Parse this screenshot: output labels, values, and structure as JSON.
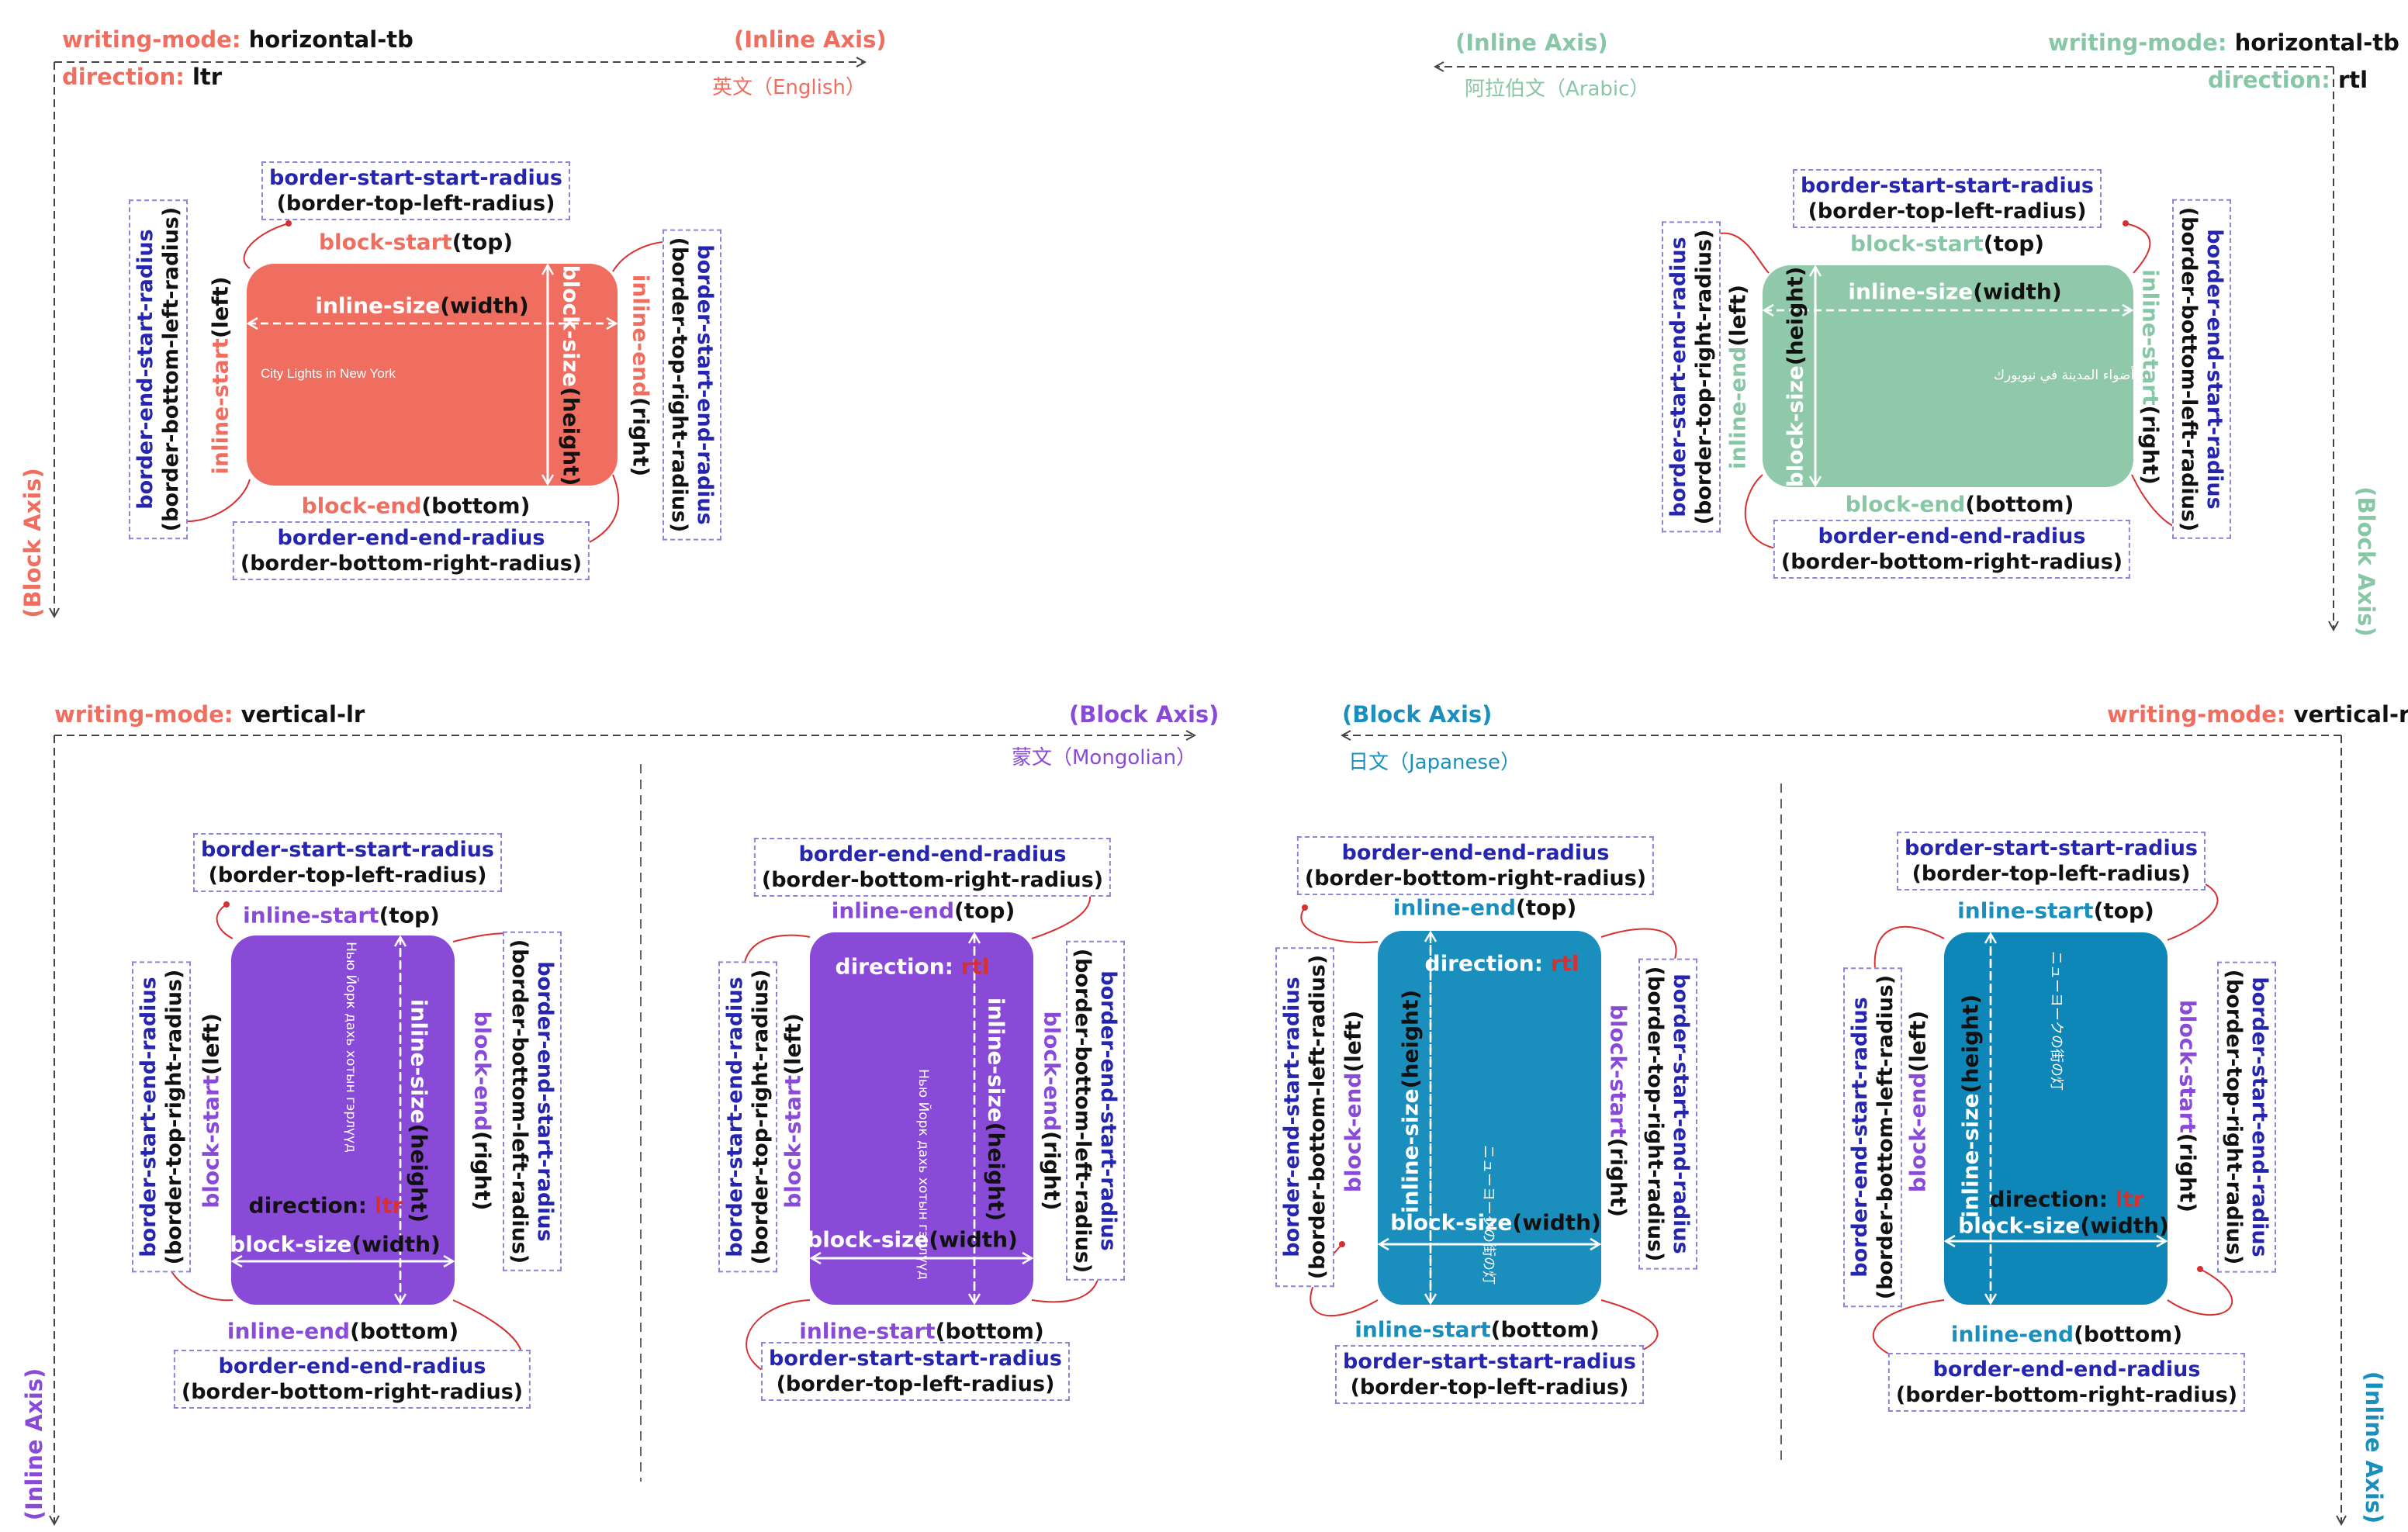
{
  "colors": {
    "red": "#f06e60",
    "green": "#88c7a6",
    "purple": "#8a4ad8",
    "blue": "#1a8fbd",
    "dark_blue": "#2525b0",
    "connector": "#d63030"
  },
  "q1": {
    "wm_key": "writing-mode:",
    "wm_val": "horizontal-tb",
    "dir_key": "direction:",
    "dir_val": "ltr",
    "inline_axis": "(Inline Axis)",
    "lang": "英文（English）",
    "block_axis": "(Block Axis)",
    "sample": "City Lights in New York",
    "inline_size": "inline-size",
    "inline_size_p": "(width)",
    "block_size": "block-size",
    "block_size_p": "(height)",
    "block_start": "block-start",
    "block_start_p": "(top)",
    "block_end": "block-end",
    "block_end_p": "(bottom)",
    "inline_start": "inline-start",
    "inline_start_p": "(left)",
    "inline_end": "inline-end",
    "inline_end_p": "(right)",
    "c_top_a": "border-start-start-radius",
    "c_top_b": "(border-top-left-radius)",
    "c_right_a": "border-start-end-radius",
    "c_right_b": "(border-top-right-radius)",
    "c_left_a": "border-end-start-radius",
    "c_left_b": "(border-bottom-left-radius)",
    "c_bottom_a": "border-end-end-radius",
    "c_bottom_b": "(border-bottom-right-radius)"
  },
  "q2": {
    "wm_key": "writing-mode:",
    "wm_val": "horizontal-tb",
    "dir_key": "direction:",
    "dir_val": "rtl",
    "inline_axis": "(Inline Axis)",
    "lang": "阿拉伯文（Arabic）",
    "block_axis": "(Block Axis)",
    "sample": "أضواء المدينة في نيويورك",
    "inline_size": "inline-size",
    "inline_size_p": "(width)",
    "block_size": "block-size",
    "block_size_p": "(height)",
    "block_start": "block-start",
    "block_start_p": "(top)",
    "block_end": "block-end",
    "block_end_p": "(bottom)",
    "inline_start": "inline-start",
    "inline_start_p": "(right)",
    "inline_end": "inline-end",
    "inline_end_p": "(left)",
    "c_top_a": "border-start-start-radius",
    "c_top_b": "(border-top-left-radius)",
    "c_right_a": "border-end-start-radius",
    "c_right_b": "(border-bottom-left-radius)",
    "c_left_a": "border-start-end-radius",
    "c_left_b": "(border-top-right-radius)",
    "c_bottom_a": "border-end-end-radius",
    "c_bottom_b": "(border-bottom-right-radius)"
  },
  "q3": {
    "wm_key": "writing-mode:",
    "wm_val": "vertical-lr",
    "block_axis": "(Block Axis)",
    "lang": "蒙文（Mongolian）",
    "inline_axis": "(Inline Axis)",
    "left": {
      "sample": "Нью Йорк дахь хотын гэрлүүд",
      "dir_key": "direction:",
      "dir_val": "ltr",
      "inline_size": "inline-size",
      "inline_size_p": "(height)",
      "block_size": "block-size",
      "block_size_p": "(width)",
      "top_k": "inline-start",
      "top_p": "(top)",
      "bottom_k": "inline-end",
      "bottom_p": "(bottom)",
      "left_k": "block-start",
      "left_p": "(left)",
      "right_k": "block-end",
      "right_p": "(right)",
      "c_top_a": "border-start-start-radius",
      "c_top_b": "(border-top-left-radius)",
      "c_right_a": "border-end-start-radius",
      "c_right_b": "(border-bottom-left-radius)",
      "c_left_a": "border-start-end-radius",
      "c_left_b": "(border-top-right-radius)",
      "c_bottom_a": "border-end-end-radius",
      "c_bottom_b": "(border-bottom-right-radius)"
    },
    "right": {
      "sample": "Нью Йорк дахь хотын гэрлүүд",
      "dir_key": "direction:",
      "dir_val": "rtl",
      "inline_size": "inline-size",
      "inline_size_p": "(height)",
      "block_size": "block-size",
      "block_size_p": "(width)",
      "top_k": "inline-end",
      "top_p": "(top)",
      "bottom_k": "inline-start",
      "bottom_p": "(bottom)",
      "left_k": "block-start",
      "left_p": "(left)",
      "right_k": "block-end",
      "right_p": "(right)",
      "c_top_a": "border-end-end-radius",
      "c_top_b": "(border-bottom-right-radius)",
      "c_right_a": "border-end-start-radius",
      "c_right_b": "(border-bottom-left-radius)",
      "c_left_a": "border-start-end-radius",
      "c_left_b": "(border-top-right-radius)",
      "c_bottom_a": "border-start-start-radius",
      "c_bottom_b": "(border-top-left-radius)"
    }
  },
  "q4": {
    "wm_key": "writing-mode:",
    "wm_val": "vertical-rl",
    "block_axis": "(Block Axis)",
    "lang": "日文（Japanese）",
    "inline_axis": "(Inline Axis)",
    "left": {
      "sample": "ニューヨークの街の灯",
      "dir_key": "direction:",
      "dir_val": "rtl",
      "inline_size": "inline-size",
      "inline_size_p": "(height)",
      "block_size": "block-size",
      "block_size_p": "(width)",
      "top_k": "inline-end",
      "top_p": "(top)",
      "bottom_k": "inline-start",
      "bottom_p": "(bottom)",
      "left_k": "block-end",
      "left_p": "(left)",
      "right_k": "block-start",
      "right_p": "(right)",
      "c_top_a": "border-end-end-radius",
      "c_top_b": "(border-bottom-right-radius)",
      "c_right_a": "border-start-end-radius",
      "c_right_b": "(border-top-right-radius)",
      "c_left_a": "border-end-start-radius",
      "c_left_b": "(border-bottom-left-radius)",
      "c_bottom_a": "border-start-start-radius",
      "c_bottom_b": "(border-top-left-radius)"
    },
    "right": {
      "sample": "ニューヨークの街の灯",
      "dir_key": "direction:",
      "dir_val": "ltr",
      "inline_size": "inline-size",
      "inline_size_p": "(height)",
      "block_size": "block-size",
      "block_size_p": "(width)",
      "top_k": "inline-start",
      "top_p": "(top)",
      "bottom_k": "inline-end",
      "bottom_p": "(bottom)",
      "left_k": "block-end",
      "left_p": "(left)",
      "right_k": "block-start",
      "right_p": "(right)",
      "c_top_a": "border-start-start-radius",
      "c_top_b": "(border-top-left-radius)",
      "c_right_a": "border-start-end-radius",
      "c_right_b": "(border-top-right-radius)",
      "c_left_a": "border-end-start-radius",
      "c_left_b": "(border-bottom-left-radius)",
      "c_bottom_a": "border-end-end-radius",
      "c_bottom_b": "(border-bottom-right-radius)"
    }
  }
}
